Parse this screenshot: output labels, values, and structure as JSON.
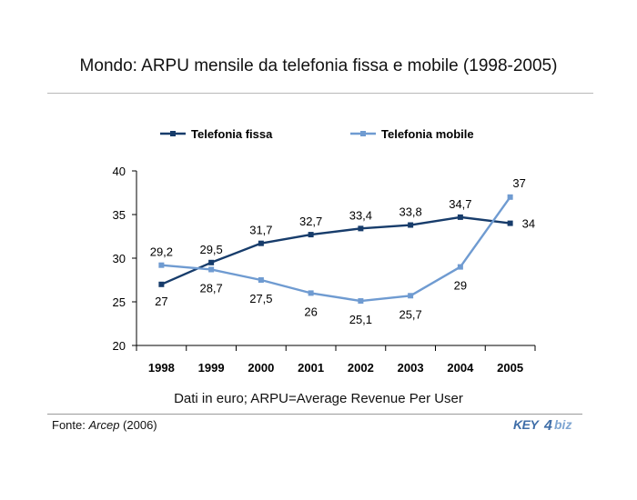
{
  "header": {
    "title": "Mondo: ARPU mensile da telefonia fissa e mobile (1998-2005)"
  },
  "note": "Dati in euro; ARPU=Average Revenue Per User",
  "source": {
    "prefix": "Fonte: ",
    "name": "Arcep",
    "suffix": " (2006)"
  },
  "logo": {
    "text_left": "KEY",
    "text_right": "biz",
    "colors": [
      "#3f6ea8",
      "#7fa6d2"
    ]
  },
  "chart_data": {
    "type": "line",
    "categories": [
      "1998",
      "1999",
      "2000",
      "2001",
      "2002",
      "2003",
      "2004",
      "2005"
    ],
    "ylim": [
      20,
      40
    ],
    "yticks": [
      20,
      25,
      30,
      35,
      40
    ],
    "grid": false,
    "legend_position": "top",
    "series": [
      {
        "name": "Telefonia fissa",
        "color": "#173c6b",
        "values": [
          27,
          29.5,
          31.7,
          32.7,
          33.4,
          33.8,
          34.7,
          34
        ],
        "labels": [
          "27",
          "29,5",
          "31,7",
          "32,7",
          "33,4",
          "33,8",
          "34,7",
          "34"
        ]
      },
      {
        "name": "Telefonia mobile",
        "color": "#6f9bd1",
        "values": [
          29.2,
          28.7,
          27.5,
          26,
          25.1,
          25.7,
          29,
          37
        ],
        "labels": [
          "29,2",
          "28,7",
          "27,5",
          "26",
          "25,1",
          "25,7",
          "29",
          "37"
        ]
      }
    ]
  }
}
